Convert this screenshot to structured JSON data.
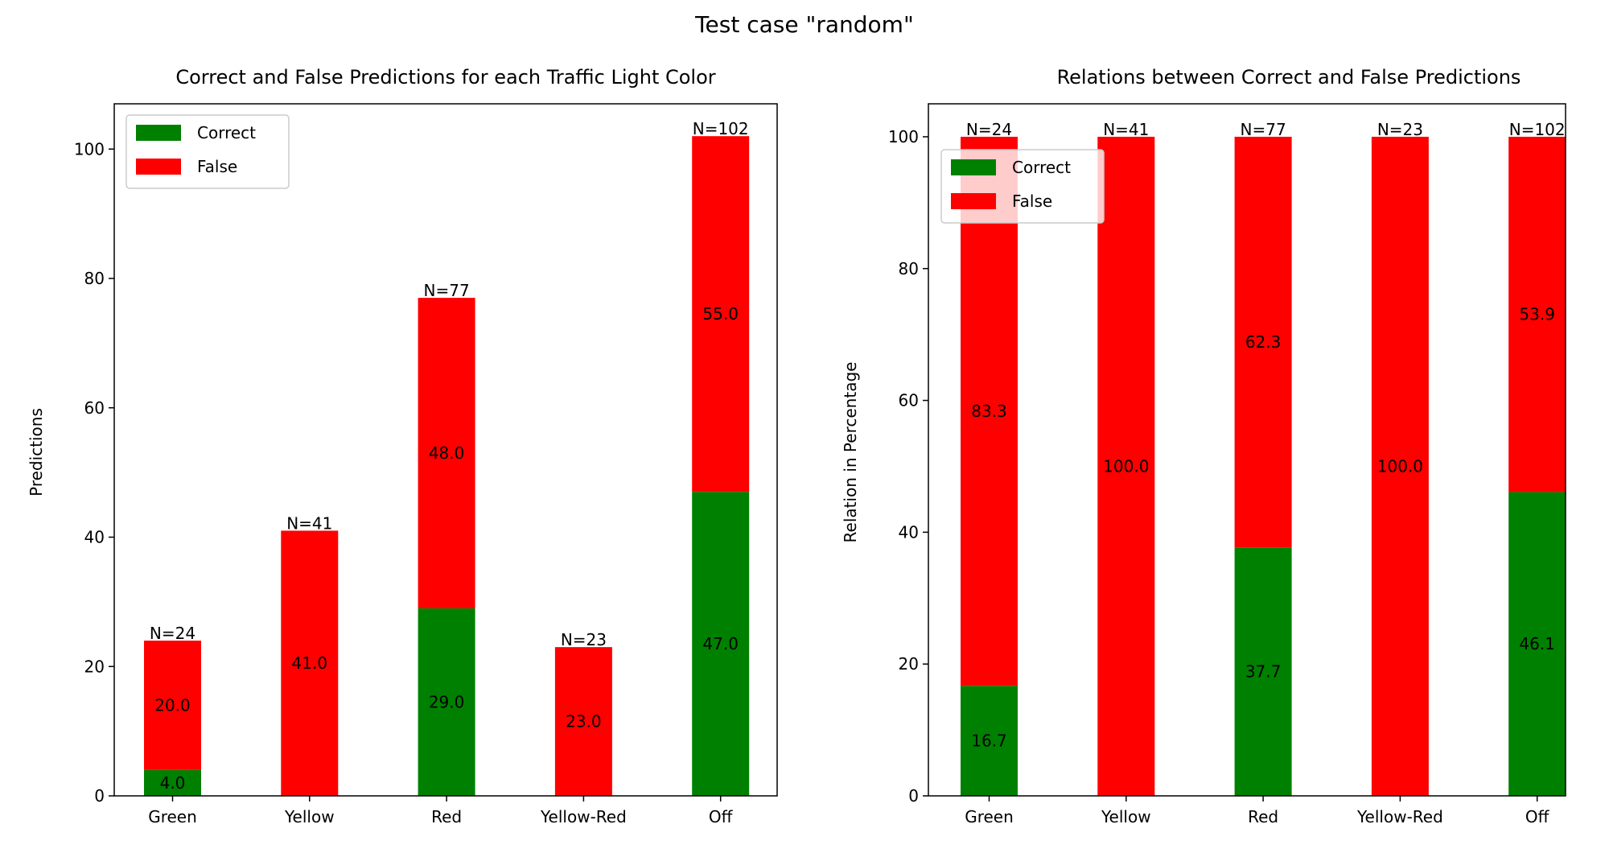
{
  "figure": {
    "suptitle": "Test case \"random\""
  },
  "colors": {
    "correct": "#008000",
    "false": "#ff0000",
    "axis": "#000000"
  },
  "chart_data": [
    {
      "type": "bar",
      "stacked": true,
      "title": "Correct and False Predictions for each Traffic Light Color",
      "xlabel": "",
      "ylabel": "Predictions",
      "categories": [
        "Green",
        "Yellow",
        "Red",
        "Yellow-Red",
        "Off"
      ],
      "ylim": [
        0,
        107
      ],
      "yticks": [
        0,
        20,
        40,
        60,
        80,
        100
      ],
      "legend": {
        "position": "top-left",
        "entries": [
          "Correct",
          "False"
        ]
      },
      "grid": false,
      "series": [
        {
          "name": "Correct",
          "values": [
            4,
            0,
            29,
            0,
            47
          ],
          "labels": [
            "4.0",
            "",
            "29.0",
            "",
            "47.0"
          ]
        },
        {
          "name": "False",
          "values": [
            20,
            41,
            48,
            23,
            55
          ],
          "labels": [
            "20.0",
            "41.0",
            "48.0",
            "23.0",
            "55.0"
          ]
        }
      ],
      "annotations": [
        "N=24",
        "N=41",
        "N=77",
        "N=23",
        "N=102"
      ]
    },
    {
      "type": "bar",
      "stacked": true,
      "title": "Relations between Correct and False Predictions",
      "xlabel": "",
      "ylabel": "Relation in Percentage",
      "categories": [
        "Green",
        "Yellow",
        "Red",
        "Yellow-Red",
        "Off"
      ],
      "ylim": [
        0,
        105
      ],
      "yticks": [
        0,
        20,
        40,
        60,
        80,
        100
      ],
      "legend": {
        "position": "top-left",
        "entries": [
          "Correct",
          "False"
        ]
      },
      "grid": false,
      "series": [
        {
          "name": "Correct",
          "values": [
            16.7,
            0,
            37.7,
            0,
            46.1
          ],
          "labels": [
            "16.7",
            "",
            "37.7",
            "",
            "46.1"
          ]
        },
        {
          "name": "False",
          "values": [
            83.3,
            100,
            62.3,
            100,
            53.9
          ],
          "labels": [
            "83.3",
            "100.0",
            "62.3",
            "100.0",
            "53.9"
          ]
        }
      ],
      "annotations": [
        "N=24",
        "N=41",
        "N=77",
        "N=23",
        "N=102"
      ]
    }
  ]
}
